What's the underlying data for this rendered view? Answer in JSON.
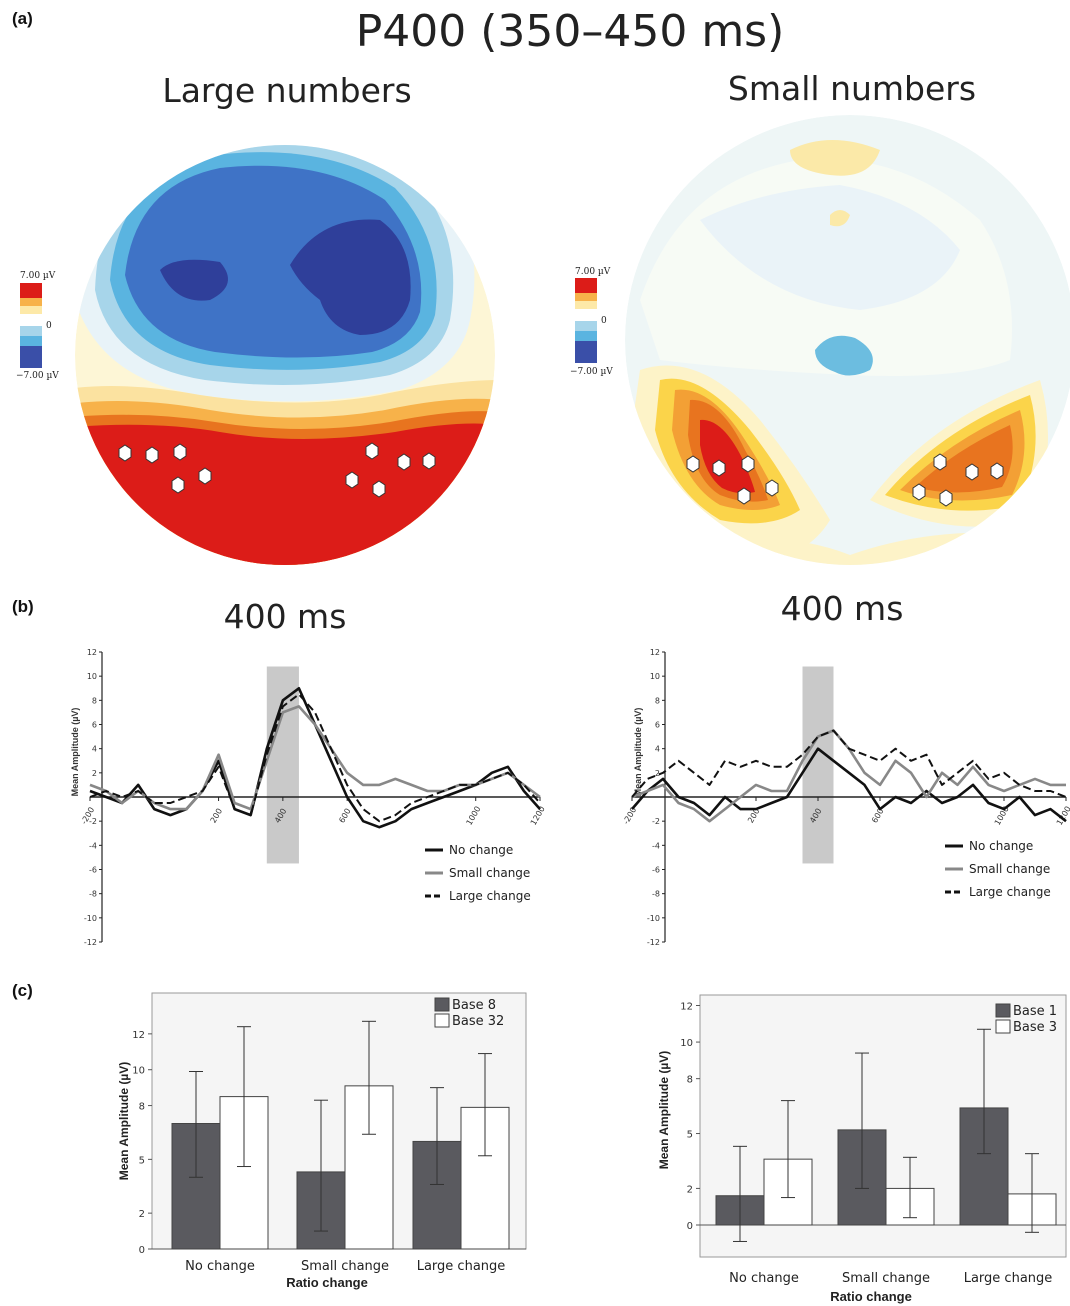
{
  "panels": {
    "a": "(a)",
    "b": "(b)",
    "c": "(c)"
  },
  "topomaps": {
    "title": "P400 (350–450 ms)",
    "colorbar": {
      "max_label": "7.00 µV",
      "min_label": "−7.00 µV",
      "mid_label": "0"
    },
    "left": {
      "title": "Large numbers"
    },
    "right": {
      "title": "Small numbers"
    }
  },
  "chart_data": [
    {
      "id": "erp-large",
      "type": "line",
      "title": "400 ms",
      "ylabel": "Mean Amplitude (µV)",
      "xlim": [
        -200,
        1200
      ],
      "ylim": [
        -12,
        12
      ],
      "xticks": [
        -200,
        200,
        400,
        600,
        1000,
        1200
      ],
      "yticks": [
        -12,
        -10,
        -8,
        -6,
        -4,
        -2,
        2,
        4,
        6,
        8,
        10,
        12
      ],
      "highlight_window": [
        350,
        450
      ],
      "legend_position": "bottom-right",
      "series": [
        {
          "name": "No change",
          "color": "#111111",
          "style": "solid",
          "x": [
            -200,
            -150,
            -100,
            -50,
            0,
            50,
            100,
            150,
            200,
            250,
            300,
            350,
            400,
            450,
            500,
            550,
            600,
            650,
            700,
            750,
            800,
            850,
            900,
            950,
            1000,
            1050,
            1100,
            1150,
            1200
          ],
          "y": [
            0.5,
            0,
            -0.5,
            1,
            -1,
            -1.5,
            -1,
            0.5,
            3,
            -1,
            -1.5,
            4,
            8,
            9,
            6,
            3,
            0,
            -2,
            -2.5,
            -2,
            -1,
            -0.5,
            0,
            0.5,
            1,
            2,
            2.5,
            0.5,
            -1
          ]
        },
        {
          "name": "Small change",
          "color": "#888888",
          "style": "solid",
          "x": [
            -200,
            -150,
            -100,
            -50,
            0,
            50,
            100,
            150,
            200,
            250,
            300,
            350,
            400,
            450,
            500,
            550,
            600,
            650,
            700,
            750,
            800,
            850,
            900,
            950,
            1000,
            1050,
            1100,
            1150,
            1200
          ],
          "y": [
            1,
            0.5,
            -0.5,
            0.5,
            -0.5,
            -1,
            -1,
            0.5,
            3.5,
            -0.5,
            -1,
            3,
            7,
            7.5,
            6,
            4,
            2,
            1,
            1,
            1.5,
            1,
            0.5,
            0.5,
            1,
            1,
            1.5,
            2,
            1,
            0
          ]
        },
        {
          "name": "Large change",
          "color": "#111111",
          "style": "dashed",
          "x": [
            -200,
            -150,
            -100,
            -50,
            0,
            50,
            100,
            150,
            200,
            250,
            300,
            350,
            400,
            450,
            500,
            550,
            600,
            650,
            700,
            750,
            800,
            850,
            900,
            950,
            1000,
            1050,
            1100,
            1150,
            1200
          ],
          "y": [
            0,
            0.5,
            0,
            0.5,
            -0.5,
            -0.5,
            0,
            0.5,
            2.5,
            -1,
            -1.5,
            3.5,
            7.5,
            8.5,
            7,
            4,
            1,
            -1,
            -2,
            -1.5,
            -0.5,
            0,
            0.5,
            1,
            1,
            1.5,
            2,
            1,
            -0.5
          ]
        }
      ]
    },
    {
      "id": "erp-small",
      "type": "line",
      "title": "400 ms",
      "ylabel": "Mean Amplitude (µV)",
      "xlim": [
        -200,
        1200
      ],
      "ylim": [
        -12,
        12
      ],
      "xticks": [
        -200,
        200,
        400,
        600,
        1000,
        1200
      ],
      "yticks": [
        -12,
        -10,
        -8,
        -6,
        -4,
        -2,
        2,
        4,
        6,
        8,
        10,
        12
      ],
      "highlight_window": [
        350,
        450
      ],
      "legend_position": "bottom-right",
      "series": [
        {
          "name": "No change",
          "color": "#111111",
          "style": "solid",
          "x": [
            -200,
            -150,
            -100,
            -50,
            0,
            50,
            100,
            150,
            200,
            250,
            300,
            350,
            400,
            450,
            500,
            550,
            600,
            650,
            700,
            750,
            800,
            850,
            900,
            950,
            1000,
            1050,
            1100,
            1150,
            1200
          ],
          "y": [
            -1,
            0.5,
            1.5,
            0,
            -0.5,
            -1.5,
            0,
            -1,
            -1,
            -0.5,
            0,
            2,
            4,
            3,
            2,
            1,
            -1,
            0,
            -0.5,
            0.5,
            -0.5,
            0,
            1,
            -0.5,
            -1,
            0,
            -1.5,
            -1,
            -2
          ]
        },
        {
          "name": "Small change",
          "color": "#888888",
          "style": "solid",
          "x": [
            -200,
            -150,
            -100,
            -50,
            0,
            50,
            100,
            150,
            200,
            250,
            300,
            350,
            400,
            450,
            500,
            550,
            600,
            650,
            700,
            750,
            800,
            850,
            900,
            950,
            1000,
            1050,
            1100,
            1150,
            1200
          ],
          "y": [
            0,
            0.5,
            1,
            -0.5,
            -1,
            -2,
            -1,
            0,
            1,
            0.5,
            0.5,
            3,
            5,
            5.5,
            4,
            2,
            1,
            3,
            2,
            0,
            2,
            1,
            2.5,
            1,
            0.5,
            1,
            1.5,
            1,
            1
          ]
        },
        {
          "name": "Large change",
          "color": "#111111",
          "style": "dashed",
          "x": [
            -200,
            -150,
            -100,
            -50,
            0,
            50,
            100,
            150,
            200,
            250,
            300,
            350,
            400,
            450,
            500,
            550,
            600,
            650,
            700,
            750,
            800,
            850,
            900,
            950,
            1000,
            1050,
            1100,
            1150,
            1200
          ],
          "y": [
            0,
            1.5,
            2,
            3,
            2,
            1,
            3,
            2.5,
            3,
            2.5,
            2.5,
            3.5,
            5,
            5.5,
            4,
            3.5,
            3,
            4,
            3,
            3.5,
            1,
            2,
            3,
            1.5,
            2,
            1,
            0.5,
            0.5,
            0
          ]
        }
      ]
    },
    {
      "id": "bars-large",
      "type": "bar",
      "xlabel": "Ratio change",
      "ylabel": "Mean Amplitude (µV)",
      "ylim": [
        0,
        14
      ],
      "yticks": [
        0,
        2,
        5,
        8,
        10,
        12
      ],
      "categories": [
        "No change",
        "Small change",
        "Large change"
      ],
      "legend_position": "top-right",
      "series": [
        {
          "name": "Base 8",
          "color": "#5a5a5f",
          "values": [
            7.0,
            4.3,
            6.0
          ],
          "error_low": [
            4.0,
            1.0,
            3.6
          ],
          "error_high": [
            9.9,
            8.3,
            9.0
          ]
        },
        {
          "name": "Base 32",
          "color": "#ffffff",
          "values": [
            8.5,
            9.1,
            7.9
          ],
          "error_low": [
            4.6,
            6.4,
            5.2
          ],
          "error_high": [
            12.4,
            12.7,
            10.9
          ]
        }
      ]
    },
    {
      "id": "bars-small",
      "type": "bar",
      "xlabel": "Ratio change",
      "ylabel": "Mean Amplitude (µV)",
      "ylim": [
        -1,
        12
      ],
      "yticks": [
        0,
        2,
        5,
        8,
        10,
        12
      ],
      "categories": [
        "No change",
        "Small change",
        "Large change"
      ],
      "legend_position": "top-right",
      "series": [
        {
          "name": "Base 1",
          "color": "#5a5a5f",
          "values": [
            1.6,
            5.2,
            6.4
          ],
          "error_low": [
            -0.9,
            2.0,
            3.9
          ],
          "error_high": [
            4.3,
            9.4,
            10.7
          ]
        },
        {
          "name": "Base 3",
          "color": "#ffffff",
          "values": [
            3.6,
            2.0,
            1.7
          ],
          "error_low": [
            1.5,
            0.4,
            -0.4
          ],
          "error_high": [
            6.8,
            3.7,
            3.9
          ]
        }
      ]
    }
  ]
}
